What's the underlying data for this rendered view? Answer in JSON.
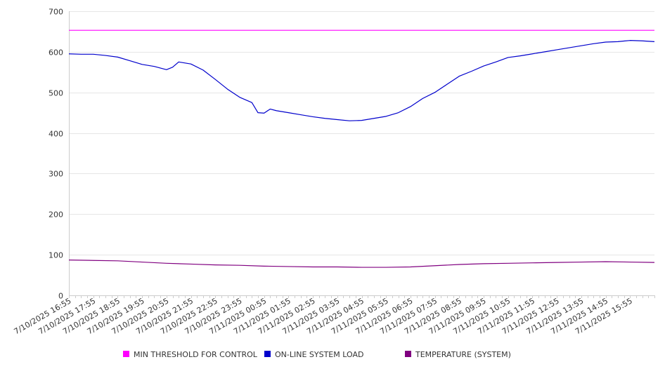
{
  "chart_data": {
    "type": "line",
    "x": [
      "7/10/2025 16:55",
      "7/10/2025 17:55",
      "7/10/2025 18:55",
      "7/10/2025 19:55",
      "7/10/2025 20:55",
      "7/10/2025 21:55",
      "7/10/2025 22:55",
      "7/10/2025 23:55",
      "7/11/2025 00:55",
      "7/11/2025 01:55",
      "7/11/2025 02:55",
      "7/11/2025 03:55",
      "7/11/2025 04:55",
      "7/11/2025 05:55",
      "7/11/2025 06:55",
      "7/11/2025 07:55",
      "7/11/2025 08:55",
      "7/11/2025 09:55",
      "7/11/2025 10:55",
      "7/11/2025 11:55",
      "7/11/2025 12:55",
      "7/11/2025 13:55",
      "7/11/2025 14:55",
      "7/11/2025 15:55"
    ],
    "x_end": "7/11/2025 16:55",
    "series": [
      {
        "name": "MIN THRESHOLD FOR CONTROL",
        "color": "#ff00ff",
        "points": [
          [
            "7/10/2025 16:55",
            653
          ],
          [
            "7/11/2025 16:55",
            653
          ]
        ]
      },
      {
        "name": "ON-LINE SYSTEM LOAD",
        "color": "#0000cc",
        "points": [
          [
            "7/10/2025 16:55",
            595
          ],
          [
            "7/10/2025 17:25",
            594
          ],
          [
            "7/10/2025 17:55",
            594
          ],
          [
            "7/10/2025 18:25",
            591
          ],
          [
            "7/10/2025 18:55",
            587
          ],
          [
            "7/10/2025 19:25",
            578
          ],
          [
            "7/10/2025 19:55",
            569
          ],
          [
            "7/10/2025 20:25",
            564
          ],
          [
            "7/10/2025 20:55",
            556
          ],
          [
            "7/10/2025 21:10",
            562
          ],
          [
            "7/10/2025 21:25",
            575
          ],
          [
            "7/10/2025 21:55",
            570
          ],
          [
            "7/10/2025 22:25",
            555
          ],
          [
            "7/10/2025 22:55",
            532
          ],
          [
            "7/10/2025 23:25",
            508
          ],
          [
            "7/10/2025 23:55",
            488
          ],
          [
            "7/11/2025 00:25",
            475
          ],
          [
            "7/11/2025 00:40",
            450
          ],
          [
            "7/11/2025 00:55",
            449
          ],
          [
            "7/11/2025 01:10",
            459
          ],
          [
            "7/11/2025 01:25",
            455
          ],
          [
            "7/11/2025 01:55",
            450
          ],
          [
            "7/11/2025 02:25",
            445
          ],
          [
            "7/11/2025 02:55",
            440
          ],
          [
            "7/11/2025 03:25",
            436
          ],
          [
            "7/11/2025 03:55",
            433
          ],
          [
            "7/11/2025 04:25",
            430
          ],
          [
            "7/11/2025 04:55",
            431
          ],
          [
            "7/11/2025 05:25",
            436
          ],
          [
            "7/11/2025 05:55",
            441
          ],
          [
            "7/11/2025 06:25",
            450
          ],
          [
            "7/11/2025 06:55",
            465
          ],
          [
            "7/11/2025 07:25",
            485
          ],
          [
            "7/11/2025 07:55",
            500
          ],
          [
            "7/11/2025 08:25",
            520
          ],
          [
            "7/11/2025 08:55",
            540
          ],
          [
            "7/11/2025 09:25",
            552
          ],
          [
            "7/11/2025 09:55",
            565
          ],
          [
            "7/11/2025 10:25",
            575
          ],
          [
            "7/11/2025 10:55",
            586
          ],
          [
            "7/11/2025 11:25",
            590
          ],
          [
            "7/11/2025 11:55",
            595
          ],
          [
            "7/11/2025 12:25",
            600
          ],
          [
            "7/11/2025 12:55",
            605
          ],
          [
            "7/11/2025 13:25",
            610
          ],
          [
            "7/11/2025 13:55",
            615
          ],
          [
            "7/11/2025 14:25",
            620
          ],
          [
            "7/11/2025 14:55",
            624
          ],
          [
            "7/11/2025 15:25",
            625
          ],
          [
            "7/11/2025 15:55",
            628
          ],
          [
            "7/11/2025 16:25",
            627
          ],
          [
            "7/11/2025 16:55",
            625
          ]
        ]
      },
      {
        "name": "TEMPERATURE (SYSTEM)",
        "color": "#800080",
        "points": [
          [
            "7/10/2025 16:55",
            87
          ],
          [
            "7/10/2025 17:55",
            86
          ],
          [
            "7/10/2025 18:55",
            85
          ],
          [
            "7/10/2025 19:55",
            82
          ],
          [
            "7/10/2025 20:55",
            79
          ],
          [
            "7/10/2025 21:55",
            77
          ],
          [
            "7/10/2025 22:55",
            75
          ],
          [
            "7/10/2025 23:55",
            74
          ],
          [
            "7/11/2025 00:55",
            72
          ],
          [
            "7/11/2025 01:55",
            71
          ],
          [
            "7/11/2025 02:55",
            70
          ],
          [
            "7/11/2025 03:55",
            70
          ],
          [
            "7/11/2025 04:55",
            69
          ],
          [
            "7/11/2025 05:55",
            69
          ],
          [
            "7/11/2025 06:55",
            70
          ],
          [
            "7/11/2025 07:55",
            73
          ],
          [
            "7/11/2025 08:55",
            76
          ],
          [
            "7/11/2025 09:55",
            78
          ],
          [
            "7/11/2025 10:55",
            79
          ],
          [
            "7/11/2025 11:55",
            80
          ],
          [
            "7/11/2025 12:55",
            81
          ],
          [
            "7/11/2025 13:55",
            82
          ],
          [
            "7/11/2025 14:55",
            83
          ],
          [
            "7/11/2025 15:55",
            82
          ],
          [
            "7/11/2025 16:55",
            81
          ]
        ]
      }
    ],
    "yticks": [
      0,
      100,
      200,
      300,
      400,
      500,
      600,
      700
    ],
    "ylim": [
      0,
      700
    ],
    "grid": true,
    "legend_position": "bottom"
  }
}
